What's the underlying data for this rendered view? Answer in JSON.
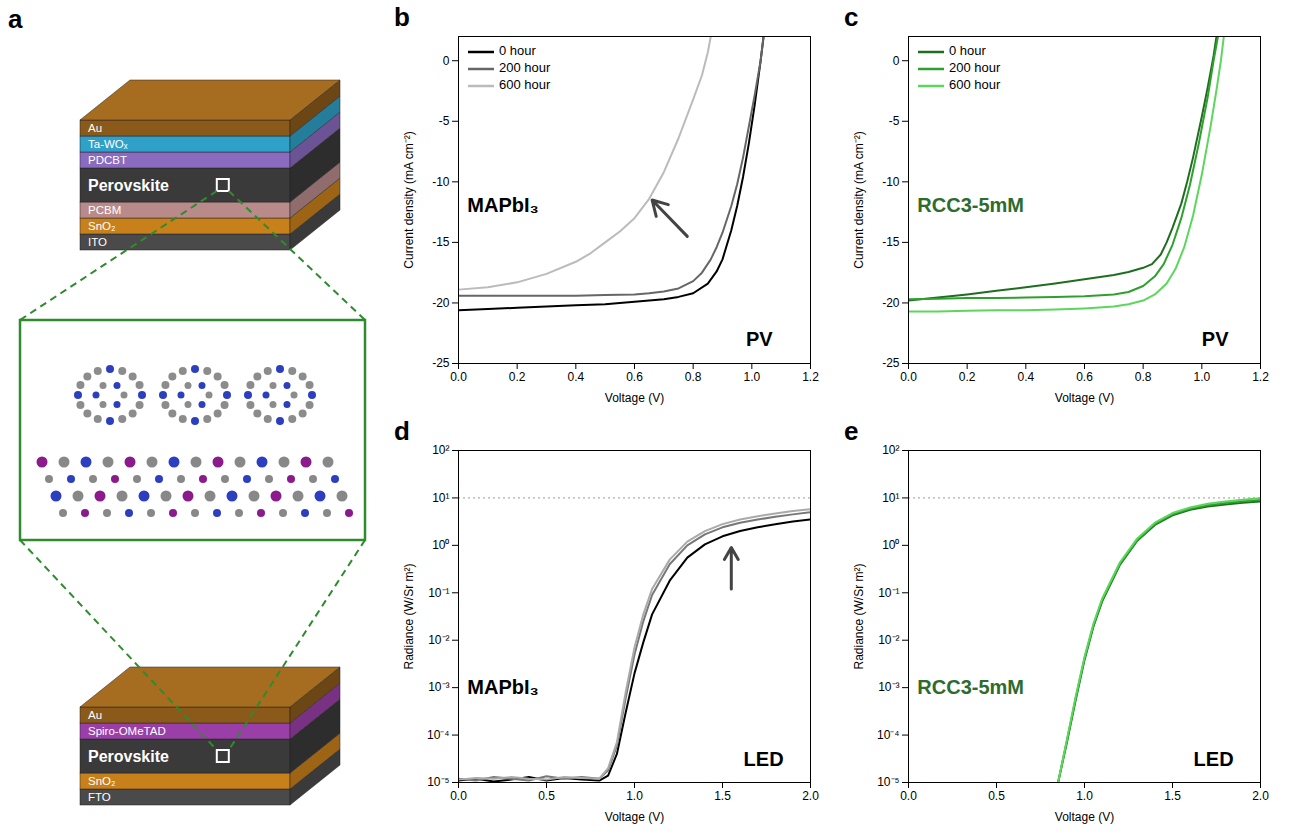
{
  "diagram": {
    "panel": "a",
    "top_stack": [
      "Au",
      "Ta-WOₓ",
      "PDCBT",
      "Perovskite",
      "PCBM",
      "SnO₂",
      "ITO"
    ],
    "bottom_stack": [
      "Au",
      "Spiro-OMeTAD",
      "Perovskite",
      "SnO₂",
      "FTO"
    ]
  },
  "chart_data": [
    {
      "panel": "b",
      "type": "line",
      "x_label": "Voltage (V)",
      "y_label": "Current density (mA cm⁻²)",
      "xlim": [
        0,
        1.2
      ],
      "ylim": [
        -25,
        2
      ],
      "xticks": [
        {
          "value": 0,
          "label": "0.0"
        },
        {
          "value": 0.2,
          "label": "0.2"
        },
        {
          "value": 0.4,
          "label": "0.4"
        },
        {
          "value": 0.6,
          "label": "0.6"
        },
        {
          "value": 0.8,
          "label": "0.8"
        },
        {
          "value": 1.0,
          "label": "1.0"
        },
        {
          "value": 1.2,
          "label": "1.2"
        }
      ],
      "yticks": [
        -25,
        -20,
        -15,
        -10,
        -5,
        0
      ],
      "legend": "top-left",
      "series": [
        {
          "name": "0 hour",
          "color": "#000000",
          "x": [
            0,
            0.1,
            0.2,
            0.3,
            0.4,
            0.5,
            0.6,
            0.7,
            0.75,
            0.8,
            0.85,
            0.88,
            0.9,
            0.93,
            0.95,
            0.97,
            0.99,
            1.01,
            1.03,
            1.04
          ],
          "values": [
            -20.6,
            -20.5,
            -20.4,
            -20.3,
            -20.2,
            -20.1,
            -19.9,
            -19.7,
            -19.5,
            -19.2,
            -18.4,
            -17.4,
            -16.4,
            -14,
            -12,
            -9.6,
            -6.8,
            -3.6,
            0,
            2
          ]
        },
        {
          "name": "200 hour",
          "color": "#666666",
          "x": [
            0,
            0.1,
            0.2,
            0.3,
            0.4,
            0.5,
            0.6,
            0.65,
            0.7,
            0.75,
            0.8,
            0.83,
            0.86,
            0.88,
            0.9,
            0.93,
            0.95,
            0.97,
            0.99,
            1.01,
            1.03,
            1.04
          ],
          "values": [
            -19.4,
            -19.4,
            -19.4,
            -19.4,
            -19.4,
            -19.35,
            -19.3,
            -19.2,
            -19.05,
            -18.8,
            -18.2,
            -17.5,
            -16.4,
            -15.4,
            -14.2,
            -12,
            -10.2,
            -8,
            -5.4,
            -2.8,
            0,
            2
          ]
        },
        {
          "name": "600 hour",
          "color": "#bbbbbb",
          "x": [
            0,
            0.1,
            0.2,
            0.3,
            0.4,
            0.45,
            0.5,
            0.55,
            0.6,
            0.65,
            0.7,
            0.75,
            0.8,
            0.83,
            0.85,
            0.86
          ],
          "values": [
            -18.9,
            -18.7,
            -18.3,
            -17.6,
            -16.6,
            -15.9,
            -15,
            -14.1,
            -13,
            -11.4,
            -9.2,
            -6.4,
            -3.2,
            -1.2,
            0.7,
            2
          ]
        }
      ],
      "annotations": [
        {
          "text": "MAPbI₃",
          "x": 0.03,
          "y": -12,
          "color": "#000000"
        },
        {
          "text": "PV",
          "x": 0.98,
          "y": -23,
          "color": "#000000"
        }
      ],
      "arrows": [
        {
          "x1": 0.78,
          "y1": -14.5,
          "x2": 0.66,
          "y2": -11.5
        }
      ]
    },
    {
      "panel": "c",
      "type": "line",
      "x_label": "Voltage (V)",
      "y_label": "Current density (mA cm⁻²)",
      "xlim": [
        0,
        1.2
      ],
      "ylim": [
        -25,
        2
      ],
      "xticks": [
        {
          "value": 0,
          "label": "0.0"
        },
        {
          "value": 0.2,
          "label": "0.2"
        },
        {
          "value": 0.4,
          "label": "0.4"
        },
        {
          "value": 0.6,
          "label": "0.6"
        },
        {
          "value": 0.8,
          "label": "0.8"
        },
        {
          "value": 1.0,
          "label": "1.0"
        },
        {
          "value": 1.2,
          "label": "1.2"
        }
      ],
      "yticks": [
        -25,
        -20,
        -15,
        -10,
        -5,
        0
      ],
      "legend": "top-left",
      "series": [
        {
          "name": "0 hour",
          "color": "#1f6e1f",
          "x": [
            0,
            0.1,
            0.2,
            0.3,
            0.4,
            0.5,
            0.6,
            0.7,
            0.75,
            0.8,
            0.83,
            0.86,
            0.88,
            0.9,
            0.93,
            0.95,
            0.97,
            1.0,
            1.02,
            1.04,
            1.05
          ],
          "values": [
            -19.8,
            -19.55,
            -19.3,
            -19.0,
            -18.7,
            -18.4,
            -18.05,
            -17.7,
            -17.45,
            -17.1,
            -16.8,
            -16,
            -15,
            -13.8,
            -11.8,
            -10,
            -8,
            -4.6,
            -2.2,
            0.4,
            2
          ]
        },
        {
          "name": "200 hour",
          "color": "#2ea02e",
          "x": [
            0,
            0.1,
            0.2,
            0.3,
            0.4,
            0.5,
            0.6,
            0.7,
            0.75,
            0.8,
            0.84,
            0.87,
            0.9,
            0.93,
            0.96,
            0.99,
            1.02,
            1.04,
            1.055
          ],
          "values": [
            -19.7,
            -19.65,
            -19.6,
            -19.6,
            -19.55,
            -19.5,
            -19.45,
            -19.3,
            -19.1,
            -18.6,
            -17.8,
            -16.8,
            -15.2,
            -13,
            -10.2,
            -6.8,
            -3,
            0,
            2
          ]
        },
        {
          "name": "600 hour",
          "color": "#5cd65c",
          "x": [
            0,
            0.1,
            0.2,
            0.3,
            0.4,
            0.5,
            0.6,
            0.7,
            0.75,
            0.8,
            0.84,
            0.88,
            0.91,
            0.94,
            0.97,
            1.0,
            1.03,
            1.05,
            1.065,
            1.075
          ],
          "values": [
            -20.7,
            -20.7,
            -20.65,
            -20.6,
            -20.6,
            -20.55,
            -20.45,
            -20.3,
            -20.1,
            -19.8,
            -19.3,
            -18.4,
            -17.2,
            -15.4,
            -12.8,
            -9.4,
            -5.4,
            -2.4,
            0,
            2
          ]
        }
      ],
      "annotations": [
        {
          "text": "RCC3-5mM",
          "x": 0.03,
          "y": -12,
          "color": "#2e6b2e"
        },
        {
          "text": "PV",
          "x": 1.0,
          "y": -23,
          "color": "#000000"
        }
      ]
    },
    {
      "panel": "d",
      "type": "line",
      "x_label": "Voltage (V)",
      "y_label": "Radiance (W/Sr m²)",
      "log": "y",
      "xlim": [
        0,
        2
      ],
      "ylim": [
        1e-05,
        100
      ],
      "xticks": [
        {
          "value": 0,
          "label": "0.0"
        },
        {
          "value": 0.5,
          "label": "0.5"
        },
        {
          "value": 1.0,
          "label": "1.0"
        },
        {
          "value": 1.5,
          "label": "1.5"
        },
        {
          "value": 2.0,
          "label": "2.0"
        }
      ],
      "yticks": [
        {
          "value": 1e-05,
          "label": "10⁻⁵"
        },
        {
          "value": 0.0001,
          "label": "10⁻⁴"
        },
        {
          "value": 0.001,
          "label": "10⁻³"
        },
        {
          "value": 0.01,
          "label": "10⁻²"
        },
        {
          "value": 0.1,
          "label": "10⁻¹"
        },
        {
          "value": 1,
          "label": "10⁰"
        },
        {
          "value": 10,
          "label": "10¹"
        },
        {
          "value": 100,
          "label": "10²"
        }
      ],
      "reference_line": 10,
      "series": [
        {
          "color": "#000000",
          "x": [
            0,
            0.1,
            0.2,
            0.3,
            0.4,
            0.5,
            0.6,
            0.7,
            0.8,
            0.85,
            0.9,
            0.95,
            1.0,
            1.05,
            1.1,
            1.2,
            1.3,
            1.4,
            1.5,
            1.6,
            1.7,
            1.8,
            1.9,
            2.0
          ],
          "values": [
            1.1e-05,
            1.2e-05,
            1.05e-05,
            1.15e-05,
            1.3e-05,
            1.1e-05,
            1.25e-05,
            1.15e-05,
            1.1e-05,
            1.4e-05,
            4e-05,
            0.0003,
            0.002,
            0.009,
            0.035,
            0.18,
            0.55,
            1.05,
            1.55,
            2.0,
            2.4,
            2.8,
            3.2,
            3.5
          ]
        },
        {
          "color": "#777777",
          "x": [
            0,
            0.1,
            0.2,
            0.3,
            0.4,
            0.5,
            0.6,
            0.7,
            0.8,
            0.85,
            0.9,
            0.95,
            1.0,
            1.05,
            1.1,
            1.2,
            1.3,
            1.4,
            1.5,
            1.6,
            1.7,
            1.8,
            1.9,
            2.0
          ],
          "values": [
            1.2e-05,
            1.1e-05,
            1.3e-05,
            1.2e-05,
            1.1e-05,
            1.35e-05,
            1.2e-05,
            1.3e-05,
            1.2e-05,
            1.8e-05,
            6e-05,
            0.0006,
            0.005,
            0.025,
            0.09,
            0.4,
            1.0,
            1.7,
            2.4,
            3.0,
            3.5,
            4.0,
            4.5,
            5.0
          ]
        },
        {
          "color": "#aaaaaa",
          "x": [
            0,
            0.1,
            0.2,
            0.3,
            0.4,
            0.5,
            0.6,
            0.7,
            0.8,
            0.85,
            0.9,
            0.95,
            1.0,
            1.05,
            1.1,
            1.2,
            1.3,
            1.4,
            1.5,
            1.6,
            1.7,
            1.8,
            1.9,
            2.0
          ],
          "values": [
            1.15e-05,
            1.25e-05,
            1.2e-05,
            1.3e-05,
            1.2e-05,
            1.15e-05,
            1.3e-05,
            1.25e-05,
            1.2e-05,
            2e-05,
            7e-05,
            0.0008,
            0.007,
            0.035,
            0.12,
            0.5,
            1.2,
            2.0,
            2.8,
            3.5,
            4.1,
            4.7,
            5.3,
            5.8
          ]
        }
      ],
      "annotations": [
        {
          "text": "MAPbI₃",
          "x": 0.05,
          "y": 0.001,
          "color": "#000000"
        },
        {
          "text": "LED",
          "x": 1.62,
          "y": 3e-05,
          "color": "#000000"
        }
      ],
      "arrows": [
        {
          "x1": 1.55,
          "y1": 0.12,
          "x2": 1.55,
          "y2": 0.9
        }
      ]
    },
    {
      "panel": "e",
      "type": "line",
      "x_label": "Voltage (V)",
      "y_label": "Radiance (W/Sr m²)",
      "log": "y",
      "xlim": [
        0,
        2
      ],
      "ylim": [
        1e-05,
        100
      ],
      "xticks": [
        {
          "value": 0,
          "label": "0.0"
        },
        {
          "value": 0.5,
          "label": "0.5"
        },
        {
          "value": 1.0,
          "label": "1.0"
        },
        {
          "value": 1.5,
          "label": "1.5"
        },
        {
          "value": 2.0,
          "label": "2.0"
        }
      ],
      "yticks": [
        {
          "value": 1e-05,
          "label": "10⁻⁵"
        },
        {
          "value": 0.0001,
          "label": "10⁻⁴"
        },
        {
          "value": 0.001,
          "label": "10⁻³"
        },
        {
          "value": 0.01,
          "label": "10⁻²"
        },
        {
          "value": 0.1,
          "label": "10⁻¹"
        },
        {
          "value": 1,
          "label": "10⁰"
        },
        {
          "value": 10,
          "label": "10¹"
        },
        {
          "value": 100,
          "label": "10²"
        }
      ],
      "reference_line": 10,
      "series": [
        {
          "color": "#1f6e1f",
          "x": [
            0.85,
            0.9,
            0.95,
            1.0,
            1.05,
            1.1,
            1.2,
            1.3,
            1.4,
            1.5,
            1.6,
            1.7,
            1.8,
            1.9,
            2.0
          ],
          "values": [
            1e-05,
            7e-05,
            0.00055,
            0.0038,
            0.019,
            0.065,
            0.38,
            1.25,
            2.7,
            4.3,
            5.6,
            6.6,
            7.3,
            7.9,
            8.4
          ]
        },
        {
          "color": "#2ea02e",
          "x": [
            0.85,
            0.9,
            0.95,
            1.0,
            1.05,
            1.1,
            1.2,
            1.3,
            1.4,
            1.5,
            1.6,
            1.7,
            1.8,
            1.9,
            2.0
          ],
          "values": [
            1e-05,
            7.5e-05,
            0.0006,
            0.0041,
            0.02,
            0.07,
            0.4,
            1.3,
            2.85,
            4.5,
            5.9,
            7.0,
            7.8,
            8.5,
            9.1
          ]
        },
        {
          "color": "#5cd65c",
          "x": [
            0.85,
            0.9,
            0.95,
            1.0,
            1.05,
            1.1,
            1.2,
            1.3,
            1.4,
            1.5,
            1.6,
            1.7,
            1.8,
            1.9,
            2.0
          ],
          "values": [
            1e-05,
            8e-05,
            0.00065,
            0.0044,
            0.022,
            0.075,
            0.43,
            1.4,
            3.0,
            4.8,
            6.3,
            7.5,
            8.4,
            9.2,
            9.9
          ]
        }
      ],
      "annotations": [
        {
          "text": "RCC3-5mM",
          "x": 0.05,
          "y": 0.001,
          "color": "#2e6b2e"
        },
        {
          "text": "LED",
          "x": 1.62,
          "y": 3e-05,
          "color": "#000000"
        }
      ]
    }
  ]
}
